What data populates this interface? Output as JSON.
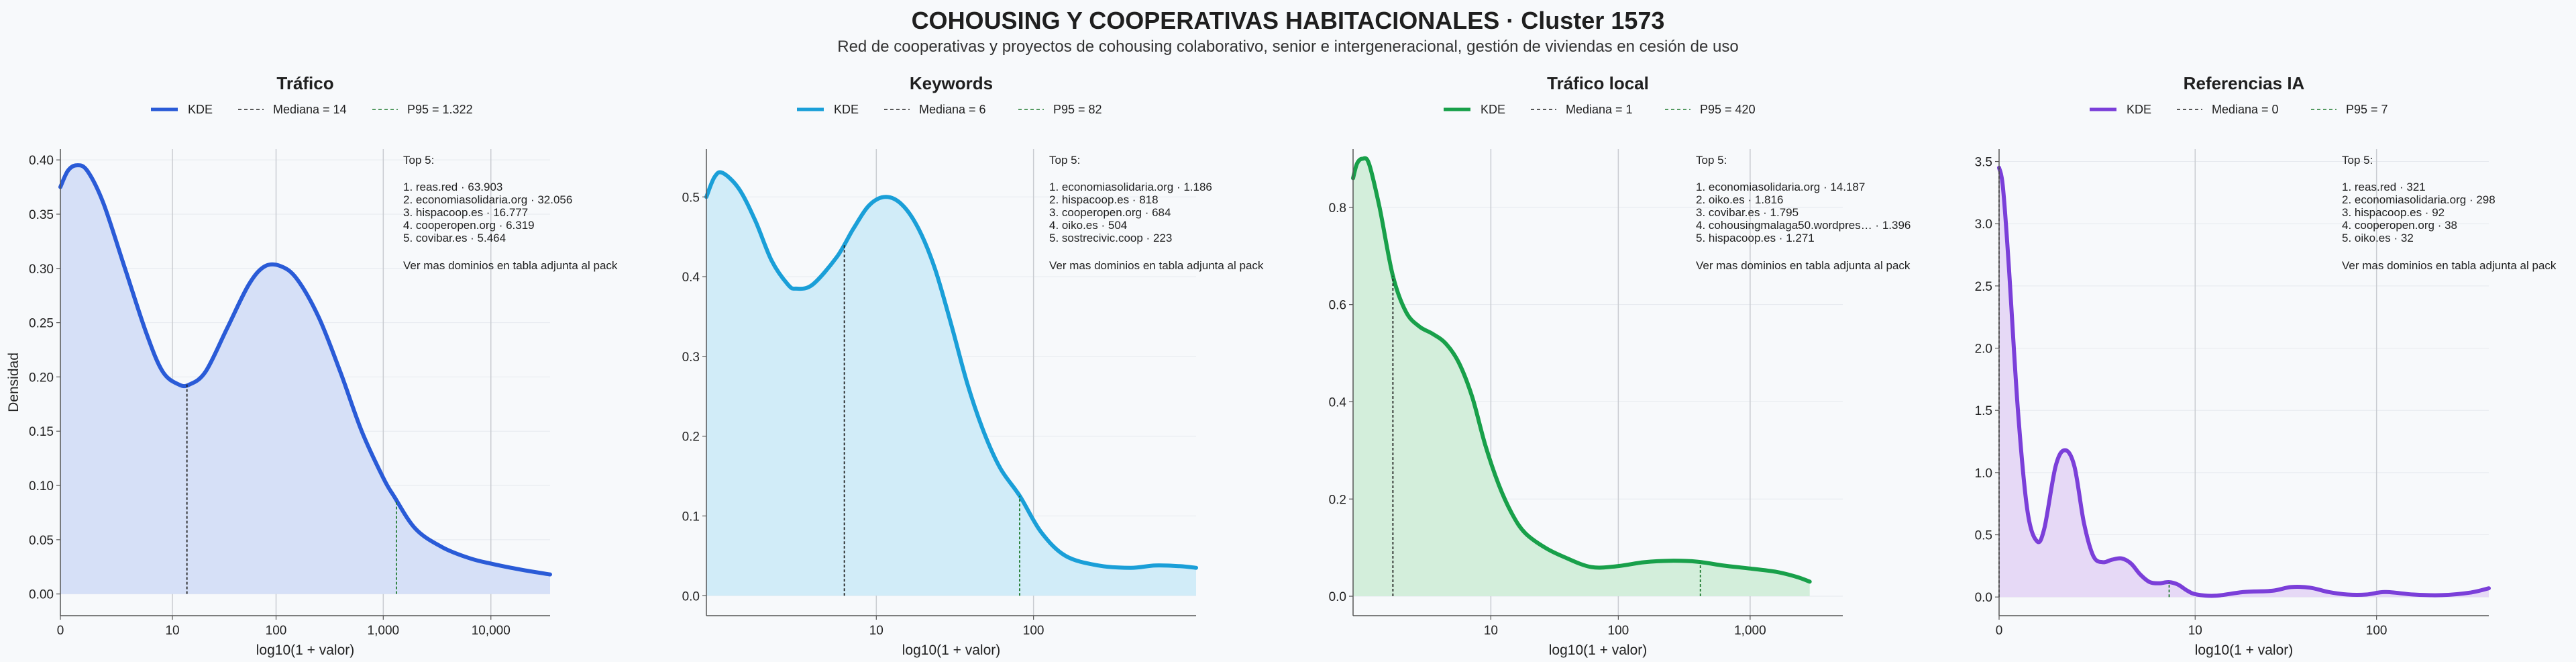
{
  "header": {
    "title": "COHOUSING Y COOPERATIVAS HABITACIONALES · Cluster 1573",
    "subtitle": "Red de cooperativas y proyectos de cohousing colaborativo, senior e intergeneracional, gestión de viviendas en cesión de uso"
  },
  "shared": {
    "ylabel": "Densidad",
    "xlabel": "log10(1 + valor)",
    "kde_label": "KDE",
    "top_title": "Top 5:",
    "top_note": "Ver mas dominios en tabla adjunta al pack"
  },
  "chart_data": [
    {
      "type": "area",
      "title": "Tráfico",
      "color": "#2a5bd7",
      "fill": "#d6e0f7",
      "legend": {
        "kde": "KDE",
        "median": "Mediana = 14",
        "p95": "P95 = 1.322"
      },
      "xlabel": "log10(1 + valor)",
      "ylabel": "Densidad",
      "xlim": [
        0,
        4.55
      ],
      "ylim": [
        -0.02,
        0.41
      ],
      "xticks": [
        {
          "v": 0,
          "label": "0"
        },
        {
          "v": 1.041,
          "label": "10"
        },
        {
          "v": 2.004,
          "label": "100"
        },
        {
          "v": 3.0,
          "label": "1,000"
        },
        {
          "v": 4.0,
          "label": "10,000"
        }
      ],
      "yticks": [
        {
          "v": 0,
          "label": "0.00"
        },
        {
          "v": 0.05,
          "label": "0.05"
        },
        {
          "v": 0.1,
          "label": "0.10"
        },
        {
          "v": 0.15,
          "label": "0.15"
        },
        {
          "v": 0.2,
          "label": "0.20"
        },
        {
          "v": 0.25,
          "label": "0.25"
        },
        {
          "v": 0.3,
          "label": "0.30"
        },
        {
          "v": 0.35,
          "label": "0.35"
        },
        {
          "v": 0.4,
          "label": "0.40"
        }
      ],
      "median_x": 1.176,
      "p95_x": 3.122,
      "curve": [
        [
          0,
          0.375
        ],
        [
          0.07,
          0.39
        ],
        [
          0.15,
          0.395
        ],
        [
          0.25,
          0.39
        ],
        [
          0.4,
          0.36
        ],
        [
          0.6,
          0.3
        ],
        [
          0.8,
          0.24
        ],
        [
          0.95,
          0.205
        ],
        [
          1.1,
          0.193
        ],
        [
          1.2,
          0.193
        ],
        [
          1.35,
          0.205
        ],
        [
          1.55,
          0.245
        ],
        [
          1.75,
          0.285
        ],
        [
          1.9,
          0.302
        ],
        [
          2.05,
          0.302
        ],
        [
          2.2,
          0.29
        ],
        [
          2.4,
          0.255
        ],
        [
          2.6,
          0.205
        ],
        [
          2.8,
          0.15
        ],
        [
          3.0,
          0.107
        ],
        [
          3.1,
          0.09
        ],
        [
          3.3,
          0.06
        ],
        [
          3.55,
          0.043
        ],
        [
          3.8,
          0.033
        ],
        [
          4.0,
          0.028
        ],
        [
          4.3,
          0.022
        ],
        [
          4.55,
          0.018
        ]
      ],
      "top5": [
        "1. reas.red · 63.903",
        "2. economiasolidaria.org · 32.056",
        "3. hispacoop.es · 16.777",
        "4. cooperopen.org · 6.319",
        "5. covibar.es · 5.464"
      ]
    },
    {
      "type": "area",
      "title": "Keywords",
      "color": "#1a9fd8",
      "fill": "#d1ecf8",
      "legend": {
        "kde": "KDE",
        "median": "Mediana = 6",
        "p95": "P95 = 82"
      },
      "xlabel": "log10(1 + valor)",
      "ylabel": "",
      "xlim": [
        0,
        3.0
      ],
      "ylim": [
        -0.025,
        0.56
      ],
      "xticks": [
        {
          "v": 1.041,
          "label": "10"
        },
        {
          "v": 2.004,
          "label": "100"
        }
      ],
      "yticks": [
        {
          "v": 0,
          "label": "0.0"
        },
        {
          "v": 0.1,
          "label": "0.1"
        },
        {
          "v": 0.2,
          "label": "0.2"
        },
        {
          "v": 0.3,
          "label": "0.3"
        },
        {
          "v": 0.4,
          "label": "0.4"
        },
        {
          "v": 0.5,
          "label": "0.5"
        }
      ],
      "median_x": 0.845,
      "p95_x": 1.919,
      "curve": [
        [
          0,
          0.5
        ],
        [
          0.05,
          0.525
        ],
        [
          0.1,
          0.53
        ],
        [
          0.2,
          0.51
        ],
        [
          0.3,
          0.47
        ],
        [
          0.4,
          0.42
        ],
        [
          0.5,
          0.39
        ],
        [
          0.55,
          0.385
        ],
        [
          0.65,
          0.39
        ],
        [
          0.8,
          0.425
        ],
        [
          0.9,
          0.46
        ],
        [
          1.0,
          0.49
        ],
        [
          1.1,
          0.5
        ],
        [
          1.2,
          0.49
        ],
        [
          1.3,
          0.46
        ],
        [
          1.4,
          0.41
        ],
        [
          1.5,
          0.34
        ],
        [
          1.6,
          0.265
        ],
        [
          1.7,
          0.205
        ],
        [
          1.8,
          0.16
        ],
        [
          1.92,
          0.125
        ],
        [
          2.05,
          0.08
        ],
        [
          2.2,
          0.05
        ],
        [
          2.4,
          0.038
        ],
        [
          2.6,
          0.035
        ],
        [
          2.75,
          0.038
        ],
        [
          2.9,
          0.037
        ],
        [
          3.0,
          0.035
        ]
      ],
      "top5": [
        "1. economiasolidaria.org · 1.186",
        "2. hispacoop.es · 818",
        "3. cooperopen.org · 684",
        "4. oiko.es · 504",
        "5. sostrecivic.coop · 223"
      ]
    },
    {
      "type": "area",
      "title": "Tráfico local",
      "color": "#18a04a",
      "fill": "#d3eedb",
      "legend": {
        "kde": "KDE",
        "median": "Mediana = 1",
        "p95": "P95 = 420"
      },
      "xlabel": "log10(1 + valor)",
      "ylabel": "",
      "xlim": [
        0,
        3.7
      ],
      "ylim": [
        -0.04,
        0.92
      ],
      "xticks": [
        {
          "v": 1.041,
          "label": "10"
        },
        {
          "v": 2.004,
          "label": "100"
        },
        {
          "v": 3.0,
          "label": "1,000"
        }
      ],
      "yticks": [
        {
          "v": 0,
          "label": "0.0"
        },
        {
          "v": 0.2,
          "label": "0.2"
        },
        {
          "v": 0.4,
          "label": "0.4"
        },
        {
          "v": 0.6,
          "label": "0.6"
        },
        {
          "v": 0.8,
          "label": "0.8"
        }
      ],
      "median_x": 0.301,
      "p95_x": 2.624,
      "curve": [
        [
          0,
          0.86
        ],
        [
          0.03,
          0.89
        ],
        [
          0.07,
          0.9
        ],
        [
          0.12,
          0.89
        ],
        [
          0.2,
          0.8
        ],
        [
          0.3,
          0.66
        ],
        [
          0.4,
          0.585
        ],
        [
          0.5,
          0.555
        ],
        [
          0.6,
          0.54
        ],
        [
          0.7,
          0.52
        ],
        [
          0.8,
          0.48
        ],
        [
          0.9,
          0.41
        ],
        [
          1.0,
          0.31
        ],
        [
          1.1,
          0.23
        ],
        [
          1.2,
          0.17
        ],
        [
          1.3,
          0.13
        ],
        [
          1.45,
          0.1
        ],
        [
          1.6,
          0.08
        ],
        [
          1.8,
          0.06
        ],
        [
          2.0,
          0.062
        ],
        [
          2.2,
          0.07
        ],
        [
          2.4,
          0.073
        ],
        [
          2.6,
          0.071
        ],
        [
          2.8,
          0.063
        ],
        [
          3.0,
          0.057
        ],
        [
          3.2,
          0.05
        ],
        [
          3.35,
          0.04
        ],
        [
          3.45,
          0.03
        ]
      ],
      "top5": [
        "1. economiasolidaria.org · 14.187",
        "2. oiko.es · 1.816",
        "3. covibar.es · 1.795",
        "4. cohousingmalaga50.wordpres… · 1.396",
        "5. hispacoop.es · 1.271"
      ]
    },
    {
      "type": "area",
      "title": "Referencias IA",
      "color": "#7b3fd9",
      "fill": "#e6d9f6",
      "legend": {
        "kde": "KDE",
        "median": "Mediana = 0",
        "p95": "P95 = 7"
      },
      "xlabel": "log10(1 + valor)",
      "ylabel": "",
      "xlim": [
        0,
        2.6
      ],
      "ylim": [
        -0.15,
        3.6
      ],
      "xticks": [
        {
          "v": 0,
          "label": "0"
        },
        {
          "v": 1.041,
          "label": "10"
        },
        {
          "v": 2.004,
          "label": "100"
        }
      ],
      "yticks": [
        {
          "v": 0,
          "label": "0.0"
        },
        {
          "v": 0.5,
          "label": "0.5"
        },
        {
          "v": 1.0,
          "label": "1.0"
        },
        {
          "v": 1.5,
          "label": "1.5"
        },
        {
          "v": 2.0,
          "label": "2.0"
        },
        {
          "v": 2.5,
          "label": "2.5"
        },
        {
          "v": 3.0,
          "label": "3.0"
        },
        {
          "v": 3.5,
          "label": "3.5"
        }
      ],
      "median_x": 0,
      "p95_x": 0.903,
      "curve": [
        [
          0,
          3.45
        ],
        [
          0.02,
          3.3
        ],
        [
          0.05,
          2.7
        ],
        [
          0.1,
          1.5
        ],
        [
          0.15,
          0.7
        ],
        [
          0.2,
          0.45
        ],
        [
          0.24,
          0.55
        ],
        [
          0.3,
          1.05
        ],
        [
          0.35,
          1.18
        ],
        [
          0.4,
          1.05
        ],
        [
          0.45,
          0.6
        ],
        [
          0.5,
          0.33
        ],
        [
          0.55,
          0.28
        ],
        [
          0.6,
          0.3
        ],
        [
          0.65,
          0.31
        ],
        [
          0.7,
          0.27
        ],
        [
          0.75,
          0.18
        ],
        [
          0.8,
          0.12
        ],
        [
          0.85,
          0.11
        ],
        [
          0.9,
          0.12
        ],
        [
          0.95,
          0.1
        ],
        [
          1.0,
          0.05
        ],
        [
          1.05,
          0.02
        ],
        [
          1.15,
          0.01
        ],
        [
          1.3,
          0.04
        ],
        [
          1.45,
          0.05
        ],
        [
          1.55,
          0.08
        ],
        [
          1.65,
          0.075
        ],
        [
          1.75,
          0.04
        ],
        [
          1.85,
          0.02
        ],
        [
          1.95,
          0.02
        ],
        [
          2.05,
          0.04
        ],
        [
          2.2,
          0.02
        ],
        [
          2.35,
          0.015
        ],
        [
          2.5,
          0.035
        ],
        [
          2.6,
          0.07
        ]
      ],
      "top5": [
        "1. reas.red · 321",
        "2. economiasolidaria.org · 298",
        "3. hispacoop.es · 92",
        "4. cooperopen.org · 38",
        "5. oiko.es · 32"
      ]
    }
  ]
}
